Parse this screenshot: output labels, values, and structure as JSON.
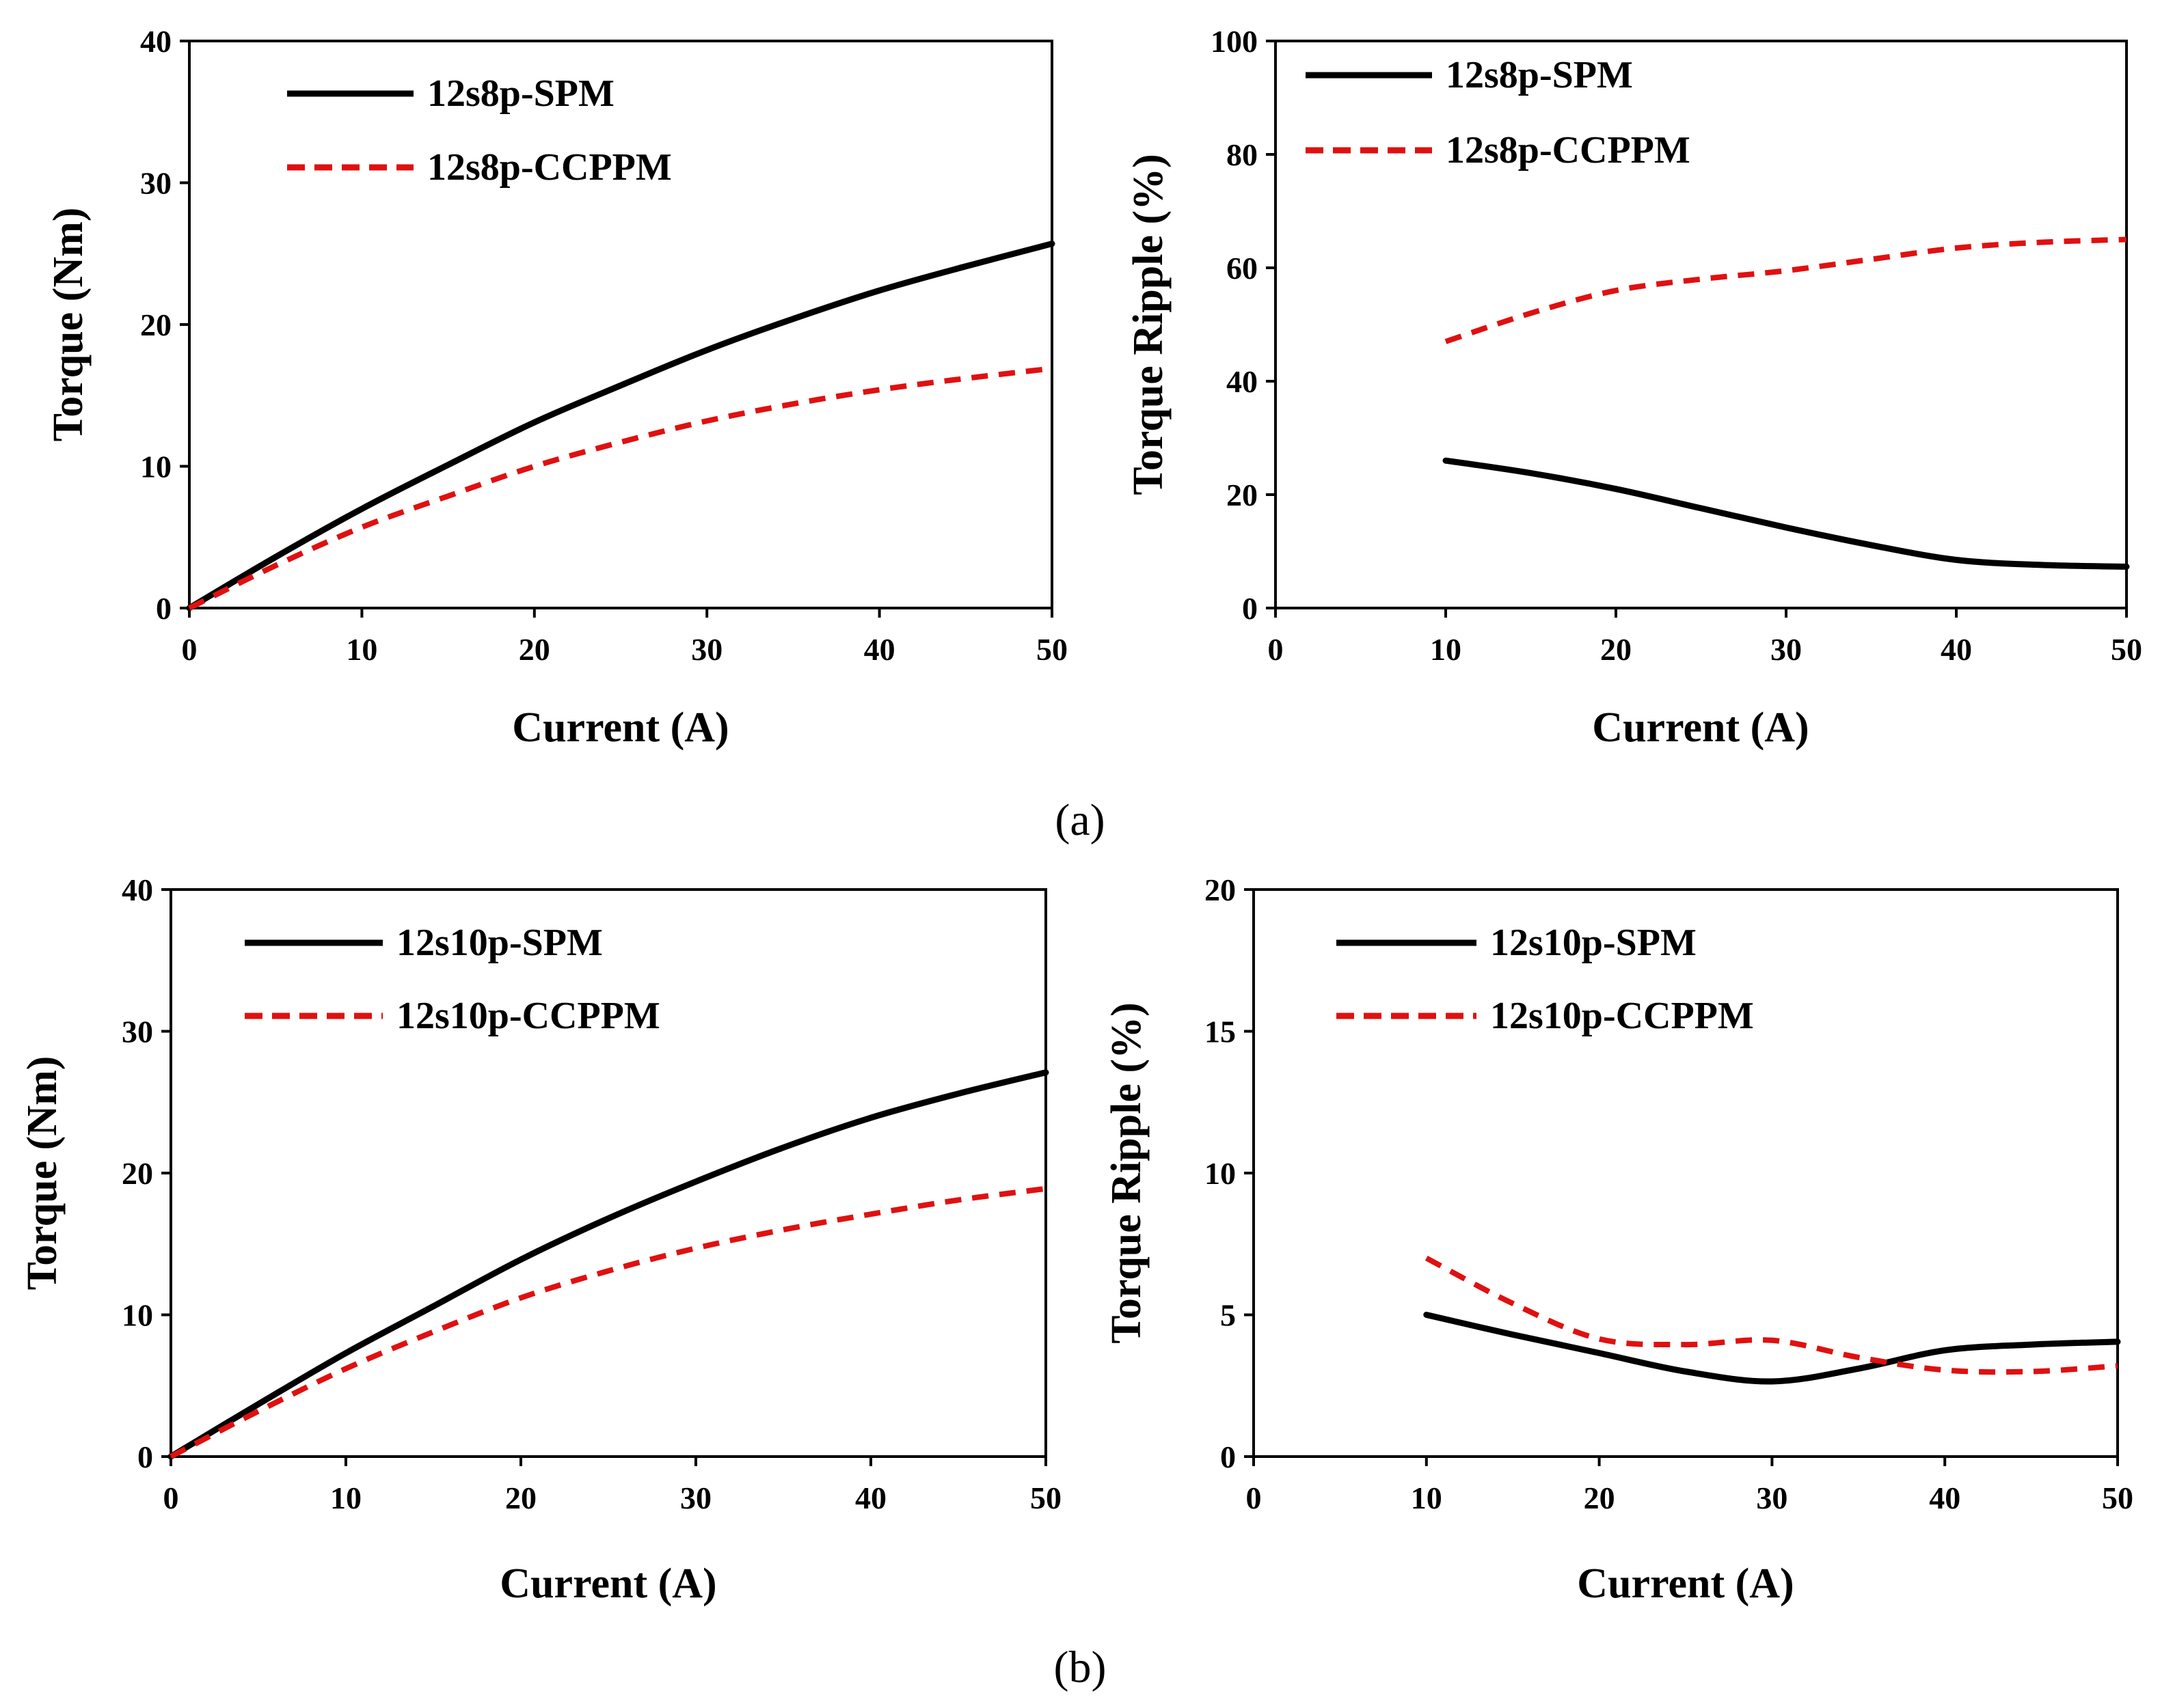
{
  "figure": {
    "caption_a": "(a)",
    "caption_b": "(b)"
  },
  "colors": {
    "spm": "#000000",
    "ccppm": "#e01010",
    "axis": "#000000"
  },
  "chart_data": [
    {
      "id": "a_torque",
      "type": "line",
      "xlabel": "Current (A)",
      "ylabel": "Torque (Nm)",
      "xlim": [
        0,
        50
      ],
      "ylim": [
        0,
        40
      ],
      "xticks": [
        0,
        10,
        20,
        30,
        40,
        50
      ],
      "yticks": [
        0,
        10,
        20,
        30,
        40
      ],
      "legend_position": "top-left",
      "series": [
        {
          "name": "12s8p-SPM",
          "style": "solid",
          "x": [
            0,
            5,
            10,
            15,
            20,
            25,
            30,
            35,
            40,
            45,
            50
          ],
          "y": [
            0,
            3.6,
            7.0,
            10.1,
            13.1,
            15.7,
            18.2,
            20.4,
            22.4,
            24.1,
            25.7
          ]
        },
        {
          "name": "12s8p-CCPPM",
          "style": "dashed",
          "x": [
            0,
            5,
            10,
            15,
            20,
            25,
            30,
            35,
            40,
            45,
            50
          ],
          "y": [
            0,
            3.0,
            5.7,
            7.9,
            10.0,
            11.7,
            13.2,
            14.4,
            15.4,
            16.2,
            16.9
          ]
        }
      ]
    },
    {
      "id": "a_ripple",
      "type": "line",
      "xlabel": "Current (A)",
      "ylabel": "Torque Ripple (%)",
      "xlim": [
        0,
        50
      ],
      "ylim": [
        0,
        100
      ],
      "xticks": [
        0,
        10,
        20,
        30,
        40,
        50
      ],
      "yticks": [
        0,
        20,
        40,
        60,
        80,
        100
      ],
      "legend_position": "top-left",
      "series": [
        {
          "name": "12s8p-SPM",
          "style": "solid",
          "x": [
            10,
            15,
            20,
            25,
            30,
            35,
            40,
            45,
            50
          ],
          "y": [
            26.0,
            23.8,
            21.0,
            17.6,
            14.2,
            11.1,
            8.5,
            7.6,
            7.3
          ]
        },
        {
          "name": "12s8p-CCPPM",
          "style": "dashed",
          "x": [
            10,
            15,
            20,
            25,
            30,
            35,
            40,
            45,
            50
          ],
          "y": [
            47.0,
            52.0,
            56.0,
            58.0,
            59.5,
            61.5,
            63.5,
            64.5,
            65.0
          ]
        }
      ]
    },
    {
      "id": "b_torque",
      "type": "line",
      "xlabel": "Current (A)",
      "ylabel": "Torque (Nm)",
      "xlim": [
        0,
        50
      ],
      "ylim": [
        0,
        40
      ],
      "xticks": [
        0,
        10,
        20,
        30,
        40,
        50
      ],
      "yticks": [
        0,
        10,
        20,
        30,
        40
      ],
      "legend_position": "top-left",
      "series": [
        {
          "name": "12s10p-SPM",
          "style": "solid",
          "x": [
            0,
            5,
            10,
            15,
            20,
            25,
            30,
            35,
            40,
            45,
            50
          ],
          "y": [
            0,
            3.7,
            7.3,
            10.6,
            13.9,
            16.8,
            19.4,
            21.8,
            23.9,
            25.6,
            27.1
          ]
        },
        {
          "name": "12s10p-CCPPM",
          "style": "dashed",
          "x": [
            0,
            5,
            10,
            15,
            20,
            25,
            30,
            35,
            40,
            45,
            50
          ],
          "y": [
            0,
            3.2,
            6.2,
            8.8,
            11.2,
            13.1,
            14.7,
            16.0,
            17.1,
            18.1,
            18.9
          ]
        }
      ]
    },
    {
      "id": "b_ripple",
      "type": "line",
      "xlabel": "Current (A)",
      "ylabel": "Torque Ripple (%)",
      "xlim": [
        0,
        50
      ],
      "ylim": [
        0,
        20
      ],
      "xticks": [
        0,
        10,
        20,
        30,
        40,
        50
      ],
      "yticks": [
        0,
        5,
        10,
        15,
        20
      ],
      "legend_position": "top-left",
      "series": [
        {
          "name": "12s10p-SPM",
          "style": "solid",
          "x": [
            10,
            15,
            20,
            25,
            30,
            35,
            40,
            45,
            50
          ],
          "y": [
            5.0,
            4.3,
            3.65,
            3.0,
            2.65,
            3.1,
            3.75,
            3.95,
            4.05
          ]
        },
        {
          "name": "12s10p-CCPPM",
          "style": "dashed",
          "x": [
            10,
            15,
            20,
            25,
            30,
            35,
            40,
            45,
            50
          ],
          "y": [
            7.0,
            5.4,
            4.15,
            3.95,
            4.1,
            3.5,
            3.05,
            3.0,
            3.2
          ]
        }
      ]
    }
  ]
}
